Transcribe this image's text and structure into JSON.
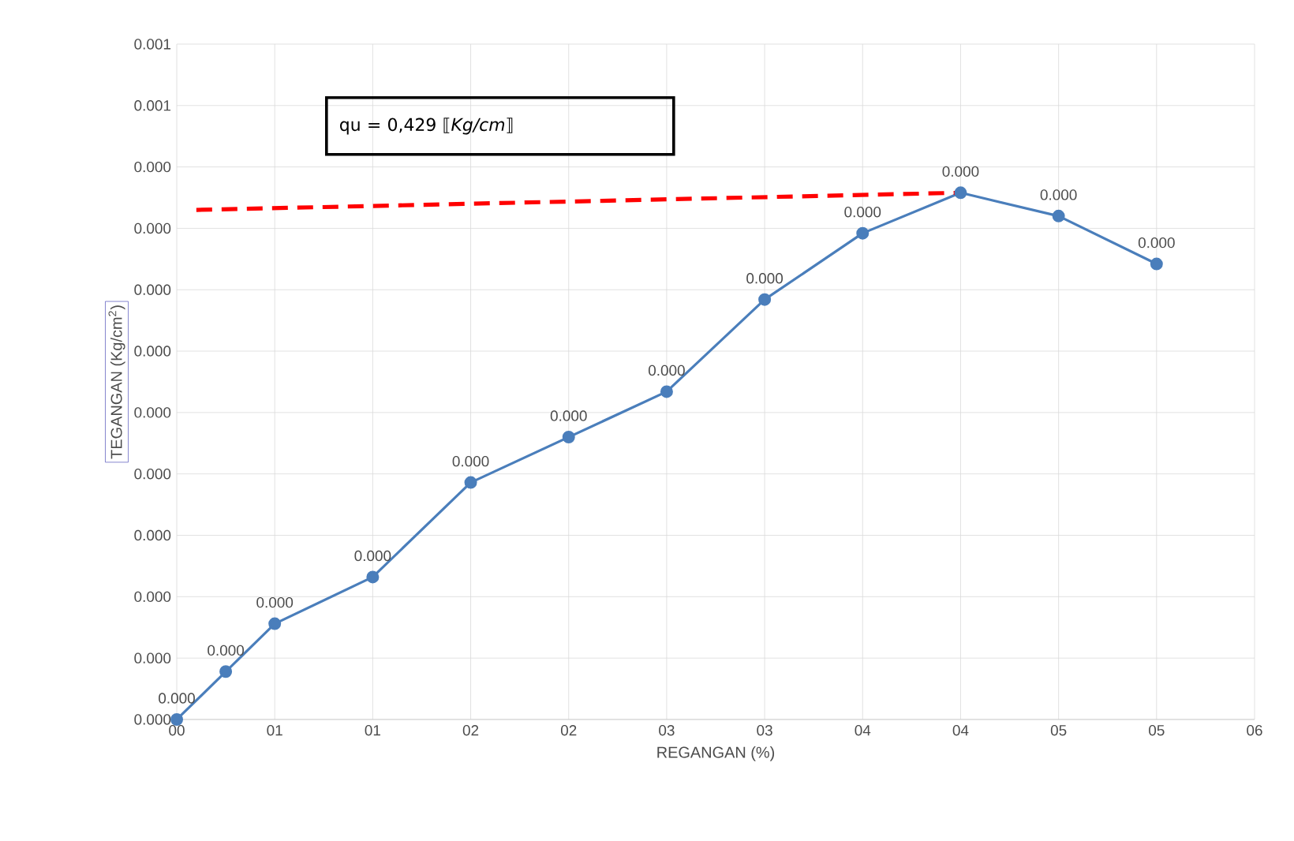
{
  "chart_data": {
    "type": "line",
    "xlabel": "REGANGAN (%)",
    "ylabel": "TEGANGAN (Kg/cm$^{2}$)",
    "annotations": [
      "qu = 0,429 ⟦*Kg/cm*⟧"
    ],
    "xlim": [
      0,
      5.5
    ],
    "ylim": [
      0,
      0.00055
    ],
    "xticks": [
      {
        "value": 0,
        "label": "00"
      },
      {
        "value": 0.5,
        "label": "01"
      },
      {
        "value": 1,
        "label": "01"
      },
      {
        "value": 1.5,
        "label": "02"
      },
      {
        "value": 2,
        "label": "02"
      },
      {
        "value": 2.5,
        "label": "03"
      },
      {
        "value": 3,
        "label": "03"
      },
      {
        "value": 3.5,
        "label": "04"
      },
      {
        "value": 4,
        "label": "04"
      },
      {
        "value": 4.5,
        "label": "05"
      },
      {
        "value": 5,
        "label": "05"
      },
      {
        "value": 5.5,
        "label": "06"
      }
    ],
    "yticks": [
      {
        "value": 0,
        "label": "0.000"
      },
      {
        "value": 5e-05,
        "label": "0.000"
      },
      {
        "value": 0.0001,
        "label": "0.000"
      },
      {
        "value": 0.00015,
        "label": "0.000"
      },
      {
        "value": 0.0002,
        "label": "0.000"
      },
      {
        "value": 0.00025,
        "label": "0.000"
      },
      {
        "value": 0.0003,
        "label": "0.000"
      },
      {
        "value": 0.00035,
        "label": "0.000"
      },
      {
        "value": 0.0004,
        "label": "0.000"
      },
      {
        "value": 0.00045,
        "label": "0.000"
      },
      {
        "value": 0.0005,
        "label": "0.001"
      },
      {
        "value": 0.00055,
        "label": "0.001"
      }
    ],
    "grid": true,
    "series": [
      {
        "color": "#4a7ebb",
        "marker": "circle",
        "x": [
          0,
          0.25,
          0.5,
          1.0,
          1.5,
          2.0,
          2.5,
          3.0,
          3.5,
          4.0,
          4.5,
          5.0
        ],
        "values": [
          0,
          3.9e-05,
          7.8e-05,
          0.000116,
          0.000193,
          0.00023,
          0.000267,
          0.000342,
          0.000396,
          0.000429,
          0.00041,
          0.000371
        ],
        "value_labels": [
          "0.000",
          "0.000",
          "0.000",
          "0.000",
          "0.000",
          "0.000",
          "0.000",
          "0.000",
          "0.000",
          "0.000",
          "0.000",
          "0.000"
        ]
      },
      {
        "type": "line",
        "color": "#ff0000",
        "marker": "none",
        "line_style": "dashed",
        "x": [
          0.1,
          4.0
        ],
        "values": [
          0.000415,
          0.000429
        ]
      }
    ]
  }
}
